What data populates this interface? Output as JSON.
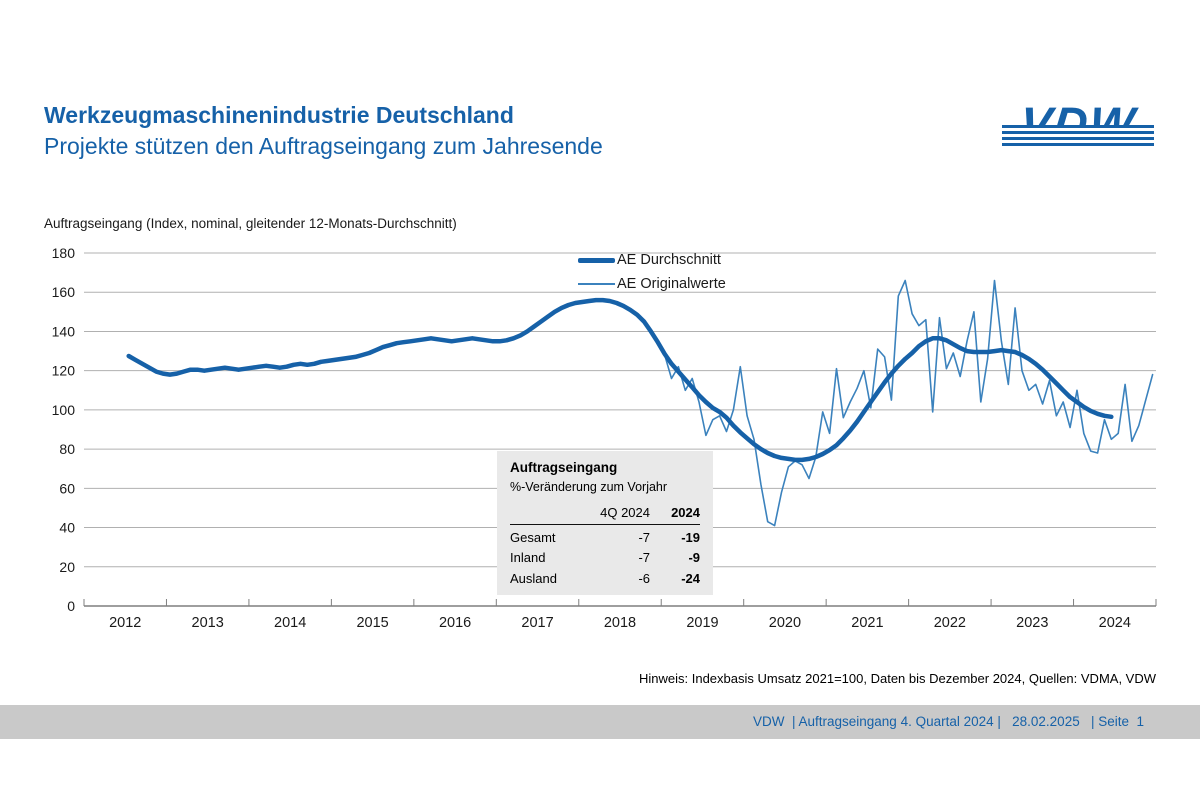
{
  "header": {
    "title": "Werkzeugmaschinenindustrie Deutschland",
    "subtitle": "Projekte stützen den Auftragseingang zum Jahresende",
    "logo_text": "VDW"
  },
  "chart_data": {
    "type": "line",
    "title": "Auftragseingang (Index, nominal, gleitender 12-Monats-Durchschnitt)",
    "ylim": [
      0,
      180
    ],
    "ytick_step": 20,
    "x_years": [
      2012,
      2013,
      2014,
      2015,
      2016,
      2017,
      2018,
      2019,
      2020,
      2021,
      2022,
      2023,
      2024
    ],
    "grid": true,
    "legend_position": "top-center",
    "series": [
      {
        "name": "AE Durchschnitt",
        "frequency": "monthly",
        "start": "2012-07",
        "values": [
          127.5,
          125.5,
          123.5,
          121.5,
          119.5,
          118.5,
          118,
          118.5,
          119.5,
          120.5,
          120.5,
          120,
          120.5,
          121,
          121.5,
          121,
          120.5,
          121,
          121.5,
          122,
          122.5,
          122,
          121.5,
          122,
          123,
          123.5,
          123,
          123.5,
          124.5,
          125,
          125.5,
          126,
          126.5,
          127,
          128,
          129,
          130.5,
          132,
          133,
          134,
          134.5,
          135,
          135.5,
          136,
          136.5,
          136,
          135.5,
          135,
          135.5,
          136,
          136.5,
          136,
          135.5,
          135,
          135,
          135.5,
          136.5,
          138,
          140,
          142.5,
          145,
          147.5,
          150,
          152,
          153.5,
          154.5,
          155,
          155.5,
          156,
          156,
          155.5,
          154.5,
          153,
          151,
          148.5,
          145,
          140,
          134.5,
          128.5,
          123.5,
          119.5,
          115.5,
          111.5,
          107.5,
          104,
          101,
          99,
          96,
          92,
          88.5,
          85.5,
          82.5,
          80,
          78,
          76.5,
          75.5,
          75,
          74.5,
          74.5,
          75,
          76,
          77.5,
          79.5,
          82,
          85.5,
          89.5,
          94,
          99,
          104,
          109,
          114,
          118.5,
          122.5,
          126,
          129,
          132.5,
          135,
          136.5,
          136.5,
          135.5,
          133.5,
          131.5,
          130,
          129.5,
          129.5,
          129.5,
          130,
          130.5,
          130,
          129.5,
          128,
          126,
          123.5,
          120.5,
          117,
          113.5,
          110,
          106.5,
          104,
          101.5,
          99.5,
          98,
          97,
          96.5
        ]
      },
      {
        "name": "AE Originalwerte",
        "frequency": "monthly",
        "start": "2019-01",
        "values": [
          128,
          116,
          122,
          110,
          116,
          104,
          87,
          95,
          97,
          89,
          100,
          122,
          97,
          85,
          62,
          43,
          41,
          58,
          71,
          74,
          72,
          65,
          76,
          99,
          88,
          121,
          96,
          104,
          111,
          120,
          101,
          131,
          127,
          105,
          158,
          166,
          149,
          143,
          146,
          99,
          147,
          121,
          129,
          117,
          135,
          150,
          104,
          126,
          166,
          135,
          113,
          152,
          120,
          110,
          113,
          103,
          115,
          97,
          104,
          91,
          110,
          88,
          79,
          78,
          95,
          85,
          88,
          113,
          84,
          92,
          105,
          118
        ]
      }
    ]
  },
  "table": {
    "title": "Auftragseingang",
    "subtitle": "%-Veränderung zum Vorjahr",
    "columns": [
      "",
      "4Q 2024",
      "2024"
    ],
    "rows": [
      [
        "Gesamt",
        "-7",
        "-19"
      ],
      [
        "Inland",
        "-7",
        "-9"
      ],
      [
        "Ausland",
        "-6",
        "-24"
      ]
    ]
  },
  "note": "Hinweis: Indexbasis Umsatz 2021=100, Daten bis Dezember 2024, Quellen: VDMA, VDW",
  "footer": {
    "text": "VDW  | Auftragseingang 4. Quartal 2024 |   28.02.2025   | Seite  1"
  },
  "colors": {
    "brand_blue": "#1661a8",
    "line_avg": "#1661a8",
    "line_orig": "#3b82bd",
    "grid_line": "#b0b0b0",
    "axis_line": "#7f7f7f",
    "footer_bar": "#c9c9c9",
    "table_bg": "#e9e9e9",
    "text": "#1a1a1a"
  }
}
